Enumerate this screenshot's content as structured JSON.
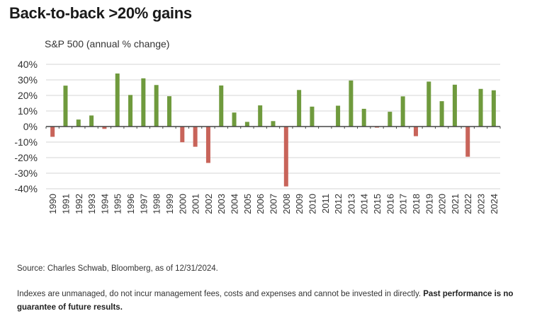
{
  "title": "Back-to-back >20% gains",
  "chart_data": {
    "type": "bar",
    "title": "Back-to-back >20% gains",
    "subtitle": "S&P 500 (annual % change)",
    "xlabel": "",
    "ylabel": "",
    "ylim": [
      -40,
      40
    ],
    "yticks": [
      40,
      30,
      20,
      10,
      0,
      -10,
      -20,
      -30,
      -40
    ],
    "ytick_labels": [
      "40%",
      "30%",
      "20%",
      "10%",
      "0%",
      "-10%",
      "-20%",
      "-30%",
      "-40%"
    ],
    "grid": true,
    "categories": [
      "1990",
      "1991",
      "1992",
      "1993",
      "1994",
      "1995",
      "1996",
      "1997",
      "1998",
      "1999",
      "2000",
      "2001",
      "2002",
      "2003",
      "2004",
      "2005",
      "2006",
      "2007",
      "2008",
      "2009",
      "2010",
      "2011",
      "2012",
      "2013",
      "2014",
      "2015",
      "2016",
      "2017",
      "2018",
      "2019",
      "2020",
      "2021",
      "2022",
      "2023",
      "2024"
    ],
    "values": [
      -6.6,
      26.3,
      4.5,
      7.1,
      -1.5,
      34.1,
      20.3,
      31.0,
      26.7,
      19.5,
      -10.1,
      -13.0,
      -23.4,
      26.4,
      9.0,
      3.0,
      13.6,
      3.5,
      -38.5,
      23.5,
      12.8,
      0.0,
      13.4,
      29.6,
      11.4,
      -0.7,
      9.5,
      19.4,
      -6.2,
      28.9,
      16.3,
      26.9,
      -19.4,
      24.2,
      23.3
    ],
    "colors": {
      "positive": "#6f9a3d",
      "negative": "#c8645a"
    }
  },
  "footer": {
    "source": "Source: Charles Schwab, Bloomberg, as of 12/31/2024.",
    "disclaimer": "Indexes are unmanaged, do not incur management fees, costs and expenses and cannot be invested in directly.",
    "disclaimer_bold": "Past performance is no guarantee of future results."
  }
}
